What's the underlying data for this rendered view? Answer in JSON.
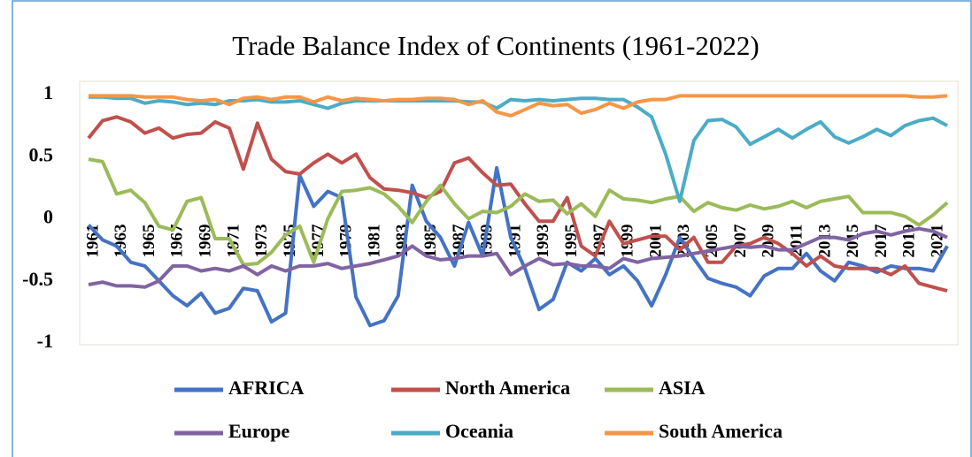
{
  "chart_data": {
    "type": "line",
    "title": "Trade Balance Index of Continents (1961-2022)",
    "categories": [
      "1961",
      null,
      "1963",
      null,
      "1965",
      null,
      "1967",
      null,
      "1969",
      null,
      "1971",
      null,
      "1973",
      null,
      "1975",
      null,
      "1977",
      null,
      "1979",
      null,
      "1981",
      null,
      "1983",
      null,
      "1985",
      null,
      "1987",
      null,
      "1989",
      null,
      "1991",
      null,
      "1993",
      null,
      "1995",
      null,
      "1997",
      null,
      "1999",
      null,
      "2001",
      null,
      "2003",
      null,
      "2005",
      null,
      "2007",
      null,
      "2009",
      null,
      "2011",
      null,
      "2013",
      null,
      "2015",
      null,
      "2017",
      null,
      "2019",
      null,
      "2021",
      null
    ],
    "ylim": [
      -1,
      1
    ],
    "yticks": [
      -1,
      -0.5,
      0,
      0.5,
      1
    ],
    "grid": false,
    "series": [
      {
        "name": "AFRICA",
        "color": "#4472c4",
        "values": [
          -0.05,
          -0.17,
          -0.22,
          -0.35,
          -0.38,
          -0.5,
          -0.62,
          -0.7,
          -0.6,
          -0.76,
          -0.72,
          -0.56,
          -0.58,
          -0.83,
          -0.76,
          0.35,
          0.1,
          0.22,
          0.17,
          -0.63,
          -0.86,
          -0.82,
          -0.62,
          0.27,
          -0.02,
          -0.15,
          -0.38,
          -0.03,
          -0.3,
          0.41,
          -0.15,
          -0.4,
          -0.73,
          -0.65,
          -0.35,
          -0.42,
          -0.32,
          -0.45,
          -0.38,
          -0.5,
          -0.7,
          -0.45,
          -0.15,
          -0.32,
          -0.48,
          -0.52,
          -0.55,
          -0.62,
          -0.46,
          -0.4,
          -0.4,
          -0.28,
          -0.42,
          -0.5,
          -0.35,
          -0.38,
          -0.43,
          -0.38,
          -0.4,
          -0.4,
          -0.42,
          -0.22
        ]
      },
      {
        "name": "North America",
        "color": "#c0504d",
        "values": [
          0.65,
          0.79,
          0.82,
          0.78,
          0.69,
          0.73,
          0.65,
          0.68,
          0.69,
          0.78,
          0.73,
          0.4,
          0.77,
          0.48,
          0.38,
          0.36,
          0.45,
          0.52,
          0.45,
          0.52,
          0.33,
          0.24,
          0.23,
          0.21,
          0.17,
          0.22,
          0.45,
          0.49,
          0.37,
          0.27,
          0.28,
          0.12,
          -0.02,
          -0.02,
          0.17,
          -0.22,
          -0.3,
          -0.02,
          -0.2,
          -0.17,
          -0.14,
          -0.14,
          -0.25,
          -0.15,
          -0.35,
          -0.35,
          -0.22,
          -0.2,
          -0.15,
          -0.2,
          -0.28,
          -0.38,
          -0.3,
          -0.38,
          -0.4,
          -0.4,
          -0.4,
          -0.45,
          -0.38,
          -0.52,
          -0.55,
          -0.58
        ]
      },
      {
        "name": "ASIA",
        "color": "#9bbb59",
        "values": [
          0.48,
          0.46,
          0.2,
          0.23,
          0.13,
          -0.06,
          -0.09,
          0.14,
          0.17,
          -0.16,
          -0.16,
          -0.37,
          -0.36,
          -0.27,
          -0.13,
          -0.06,
          -0.35,
          0,
          0.22,
          0.23,
          0.25,
          0.2,
          0.1,
          -0.03,
          0.14,
          0.27,
          0.12,
          0,
          0.06,
          0.05,
          0.1,
          0.2,
          0.14,
          0.15,
          0.04,
          0.12,
          0.02,
          0.23,
          0.16,
          0.15,
          0.13,
          0.16,
          0.18,
          0.06,
          0.13,
          0.09,
          0.07,
          0.11,
          0.08,
          0.1,
          0.14,
          0.09,
          0.14,
          0.16,
          0.18,
          0.05,
          0.05,
          0.05,
          0.02,
          -0.05,
          0.03,
          0.13
        ]
      },
      {
        "name": "Europe",
        "color": "#8064a2",
        "values": [
          -0.53,
          -0.51,
          -0.54,
          -0.54,
          -0.55,
          -0.5,
          -0.38,
          -0.38,
          -0.42,
          -0.4,
          -0.42,
          -0.38,
          -0.45,
          -0.38,
          -0.42,
          -0.38,
          -0.38,
          -0.36,
          -0.4,
          -0.38,
          -0.36,
          -0.33,
          -0.3,
          -0.22,
          -0.3,
          -0.33,
          -0.32,
          -0.3,
          -0.3,
          -0.28,
          -0.45,
          -0.38,
          -0.32,
          -0.37,
          -0.36,
          -0.38,
          -0.38,
          -0.4,
          -0.32,
          -0.35,
          -0.32,
          -0.31,
          -0.3,
          -0.28,
          -0.26,
          -0.24,
          -0.22,
          -0.23,
          -0.22,
          -0.25,
          -0.25,
          -0.2,
          -0.15,
          -0.15,
          -0.17,
          -0.12,
          -0.1,
          -0.13,
          -0.1,
          -0.08,
          -0.1,
          -0.15
        ]
      },
      {
        "name": "Oceania",
        "color": "#4bacc6",
        "values": [
          0.98,
          0.98,
          0.97,
          0.97,
          0.93,
          0.95,
          0.94,
          0.92,
          0.93,
          0.92,
          0.95,
          0.95,
          0.96,
          0.94,
          0.94,
          0.95,
          0.92,
          0.89,
          0.93,
          0.95,
          0.95,
          0.95,
          0.95,
          0.95,
          0.95,
          0.95,
          0.95,
          0.94,
          0.94,
          0.89,
          0.96,
          0.95,
          0.96,
          0.95,
          0.96,
          0.97,
          0.97,
          0.96,
          0.96,
          0.9,
          0.82,
          0.52,
          0.14,
          0.63,
          0.79,
          0.8,
          0.74,
          0.6,
          0.66,
          0.72,
          0.65,
          0.72,
          0.78,
          0.66,
          0.61,
          0.66,
          0.72,
          0.67,
          0.75,
          0.79,
          0.81,
          0.75
        ]
      },
      {
        "name": "South America",
        "color": "#f79646",
        "values": [
          0.99,
          0.99,
          0.99,
          0.99,
          0.98,
          0.98,
          0.98,
          0.96,
          0.95,
          0.96,
          0.92,
          0.97,
          0.98,
          0.96,
          0.98,
          0.98,
          0.94,
          0.98,
          0.95,
          0.97,
          0.96,
          0.95,
          0.96,
          0.96,
          0.97,
          0.97,
          0.96,
          0.92,
          0.95,
          0.86,
          0.83,
          0.88,
          0.93,
          0.91,
          0.92,
          0.85,
          0.88,
          0.93,
          0.89,
          0.94,
          0.96,
          0.96,
          0.99,
          0.99,
          0.99,
          0.99,
          0.99,
          0.99,
          0.99,
          0.99,
          0.99,
          0.99,
          0.99,
          0.99,
          0.99,
          0.99,
          0.99,
          0.99,
          0.99,
          0.98,
          0.98,
          0.99
        ]
      }
    ]
  }
}
